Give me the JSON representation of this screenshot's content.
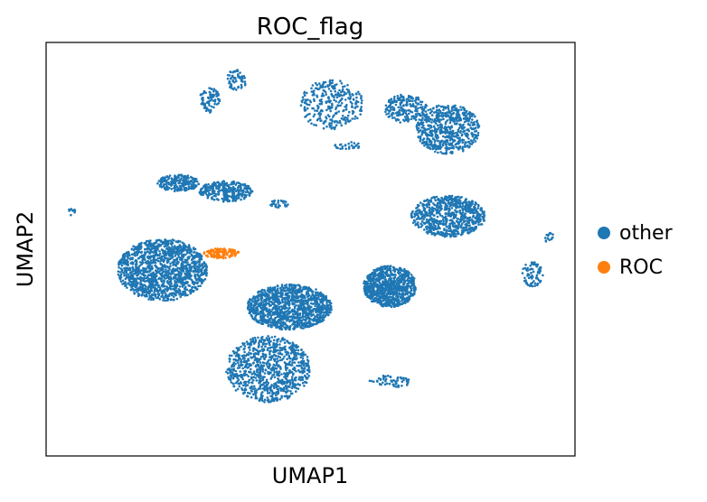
{
  "chart_data": {
    "type": "scatter",
    "title": "ROC_flag",
    "xlabel": "UMAP1",
    "ylabel": "UMAP2",
    "xticks": false,
    "yticks": false,
    "grid": false,
    "legend_position": "right",
    "series": [
      {
        "name": "other",
        "color": "#1f77b4",
        "clusters": [
          {
            "cx": 0.22,
            "cy": 0.45,
            "rx": 0.085,
            "ry": 0.075,
            "n": 1400
          },
          {
            "cx": 0.42,
            "cy": 0.21,
            "rx": 0.08,
            "ry": 0.08,
            "n": 900
          },
          {
            "cx": 0.46,
            "cy": 0.36,
            "rx": 0.08,
            "ry": 0.055,
            "n": 1200
          },
          {
            "cx": 0.65,
            "cy": 0.41,
            "rx": 0.05,
            "ry": 0.05,
            "n": 900
          },
          {
            "cx": 0.76,
            "cy": 0.58,
            "rx": 0.07,
            "ry": 0.05,
            "n": 700
          },
          {
            "cx": 0.76,
            "cy": 0.79,
            "rx": 0.06,
            "ry": 0.06,
            "n": 600
          },
          {
            "cx": 0.25,
            "cy": 0.66,
            "rx": 0.04,
            "ry": 0.02,
            "n": 200
          },
          {
            "cx": 0.34,
            "cy": 0.64,
            "rx": 0.05,
            "ry": 0.025,
            "n": 300
          },
          {
            "cx": 0.36,
            "cy": 0.91,
            "rx": 0.02,
            "ry": 0.025,
            "n": 60
          },
          {
            "cx": 0.31,
            "cy": 0.86,
            "rx": 0.02,
            "ry": 0.03,
            "n": 80
          },
          {
            "cx": 0.54,
            "cy": 0.85,
            "rx": 0.06,
            "ry": 0.06,
            "n": 300
          },
          {
            "cx": 0.68,
            "cy": 0.84,
            "rx": 0.04,
            "ry": 0.035,
            "n": 200
          },
          {
            "cx": 0.92,
            "cy": 0.44,
            "rx": 0.02,
            "ry": 0.03,
            "n": 80
          },
          {
            "cx": 0.65,
            "cy": 0.18,
            "rx": 0.04,
            "ry": 0.015,
            "n": 60
          },
          {
            "cx": 0.57,
            "cy": 0.75,
            "rx": 0.025,
            "ry": 0.01,
            "n": 30
          },
          {
            "cx": 0.44,
            "cy": 0.61,
            "rx": 0.02,
            "ry": 0.01,
            "n": 30
          },
          {
            "cx": 0.05,
            "cy": 0.59,
            "rx": 0.01,
            "ry": 0.01,
            "n": 10
          },
          {
            "cx": 0.95,
            "cy": 0.53,
            "rx": 0.01,
            "ry": 0.015,
            "n": 15
          }
        ]
      },
      {
        "name": "ROC",
        "color": "#ff7f0e",
        "clusters": [
          {
            "cx": 0.33,
            "cy": 0.49,
            "rx": 0.035,
            "ry": 0.012,
            "n": 120
          }
        ]
      }
    ]
  }
}
